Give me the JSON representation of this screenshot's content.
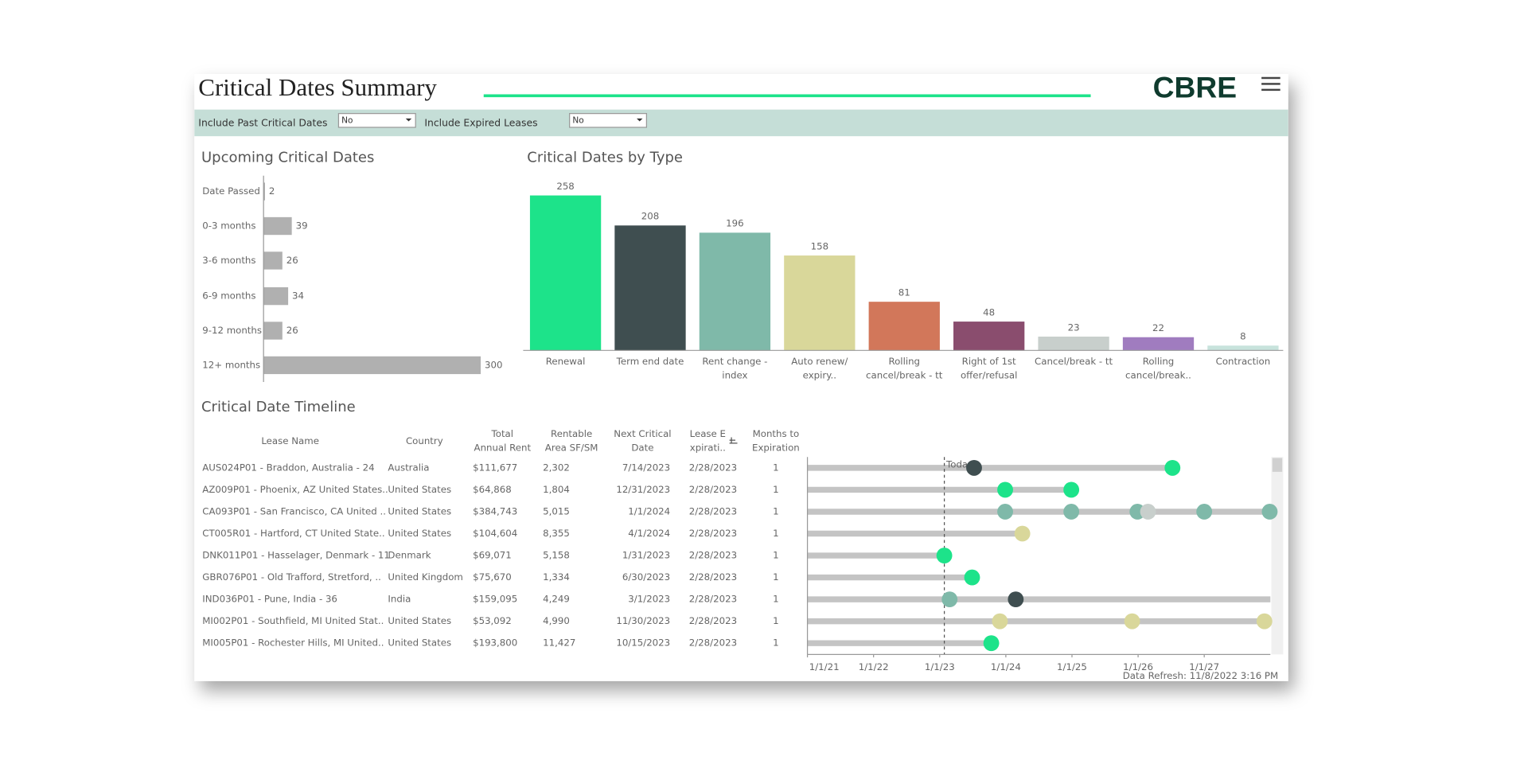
{
  "header": {
    "title": "Critical Dates Summary",
    "logo": "CBRE"
  },
  "filters": [
    {
      "label": "Include Past Critical Dates",
      "value": "No"
    },
    {
      "label": "Include Expired Leases",
      "value": "No"
    }
  ],
  "chart_data": [
    {
      "type": "hbar",
      "title": "Upcoming Critical Dates",
      "categories": [
        "Date Passed",
        "0-3 months",
        "3-6 months",
        "6-9 months",
        "9-12 months",
        "12+ months"
      ],
      "values": [
        2,
        39,
        26,
        34,
        26,
        300
      ],
      "color": "#b0b0b0",
      "xlim": [
        0,
        300
      ]
    },
    {
      "type": "bar",
      "title": "Critical Dates by Type",
      "categories": [
        "Renewal",
        "Term end date",
        "Rent change - index",
        "Auto renew/ expiry..",
        "Rolling cancel/break - tt",
        "Right of 1st offer/refusal",
        "Cancel/break - tt",
        "Rolling cancel/break..",
        "Contraction"
      ],
      "values": [
        258,
        208,
        196,
        158,
        81,
        48,
        23,
        22,
        8
      ],
      "colors": [
        "#1de38a",
        "#3f4e50",
        "#7fb9a9",
        "#d9d79a",
        "#d2775a",
        "#8a4d6e",
        "#c8cfcc",
        "#a07cbf",
        "#c7e3dc"
      ],
      "ylim": [
        0,
        258
      ]
    },
    {
      "type": "timeline",
      "title": "Critical Date Timeline",
      "columns": [
        [
          "Lease Name"
        ],
        [
          "Country"
        ],
        [
          "Total",
          "Annual Rent"
        ],
        [
          "Rentable",
          "Area SF/SM"
        ],
        [
          "Next Critical",
          "Date"
        ],
        [
          "Lease E",
          "xpirati.."
        ],
        [
          "Months to",
          "Expiration"
        ]
      ],
      "rows": [
        [
          "AUS024P01 - Braddon, Australia - 24",
          "Australia",
          "$111,677",
          "2,302",
          "7/14/2023",
          "2/28/2023",
          "1"
        ],
        [
          "AZ009P01 - Phoenix, AZ United States..",
          "United States",
          "$64,868",
          "1,804",
          "12/31/2023",
          "2/28/2023",
          "1"
        ],
        [
          "CA093P01 - San Francisco, CA United ..",
          "United States",
          "$384,743",
          "5,015",
          "1/1/2024",
          "2/28/2023",
          "1"
        ],
        [
          "CT005R01 - Hartford, CT United State..",
          "United States",
          "$104,604",
          "8,355",
          "4/1/2024",
          "2/28/2023",
          "1"
        ],
        [
          "DNK011P01 - Hasselager, Denmark - 11",
          "Denmark",
          "$69,071",
          "5,158",
          "1/31/2023",
          "2/28/2023",
          "1"
        ],
        [
          "GBR076P01 - Old Trafford, Stretford, ..",
          "United Kingdom",
          "$75,670",
          "1,334",
          "6/30/2023",
          "2/28/2023",
          "1"
        ],
        [
          "IND036P01 - Pune, India - 36",
          "India",
          "$159,095",
          "4,249",
          "3/1/2023",
          "2/28/2023",
          "1"
        ],
        [
          "MI002P01 - Southfield, MI United Stat..",
          "United States",
          "$53,092",
          "4,990",
          "11/30/2023",
          "2/28/2023",
          "1"
        ],
        [
          "MI005P01 - Rochester Hills, MI United..",
          "United States",
          "$193,800",
          "11,427",
          "10/15/2023",
          "2/28/2023",
          "1"
        ]
      ],
      "markers": [
        [
          {
            "x": 2023.52,
            "color": "#3f4e50"
          },
          {
            "x": 2026.52,
            "color": "#1de38a"
          }
        ],
        [
          {
            "x": 2023.99,
            "color": "#1de38a"
          },
          {
            "x": 2024.99,
            "color": "#1de38a"
          }
        ],
        [
          {
            "x": 2023.99,
            "color": "#7fb9a9"
          },
          {
            "x": 2024.99,
            "color": "#7fb9a9"
          },
          {
            "x": 2025.99,
            "color": "#7fb9a9"
          },
          {
            "x": 2026.15,
            "color": "#c8cfcc"
          },
          {
            "x": 2027.0,
            "color": "#7fb9a9"
          },
          {
            "x": 2027.99,
            "color": "#7fb9a9"
          }
        ],
        [
          {
            "x": 2024.25,
            "color": "#d9d79a"
          }
        ],
        [
          {
            "x": 2023.07,
            "color": "#1de38a"
          }
        ],
        [
          {
            "x": 2023.49,
            "color": "#1de38a"
          }
        ],
        [
          {
            "x": 2023.15,
            "color": "#7fb9a9"
          },
          {
            "x": 2024.15,
            "color": "#3f4e50"
          }
        ],
        [
          {
            "x": 2023.91,
            "color": "#d9d79a"
          },
          {
            "x": 2025.91,
            "color": "#d9d79a"
          },
          {
            "x": 2027.91,
            "color": "#d9d79a"
          }
        ],
        [
          {
            "x": 2023.78,
            "color": "#1de38a"
          }
        ]
      ],
      "bar_ends": [
        2026.52,
        2024.99,
        2027.99,
        2024.25,
        2023.07,
        2023.49,
        2028.0,
        2027.91,
        2023.78
      ],
      "xlim": [
        2021,
        2028
      ],
      "xticks": [
        {
          "value": 2021,
          "label": "1/1/21"
        },
        {
          "value": 2022,
          "label": "1/1/22"
        },
        {
          "value": 2023,
          "label": "1/1/23"
        },
        {
          "value": 2024,
          "label": "1/1/24"
        },
        {
          "value": 2025,
          "label": "1/1/25"
        },
        {
          "value": 2026,
          "label": "1/1/26"
        },
        {
          "value": 2027,
          "label": "1/1/27"
        }
      ],
      "today": {
        "value": 2023.07,
        "label": "Today"
      },
      "footnote": "Data Refresh: 11/8/2022 3:16 PM"
    }
  ]
}
